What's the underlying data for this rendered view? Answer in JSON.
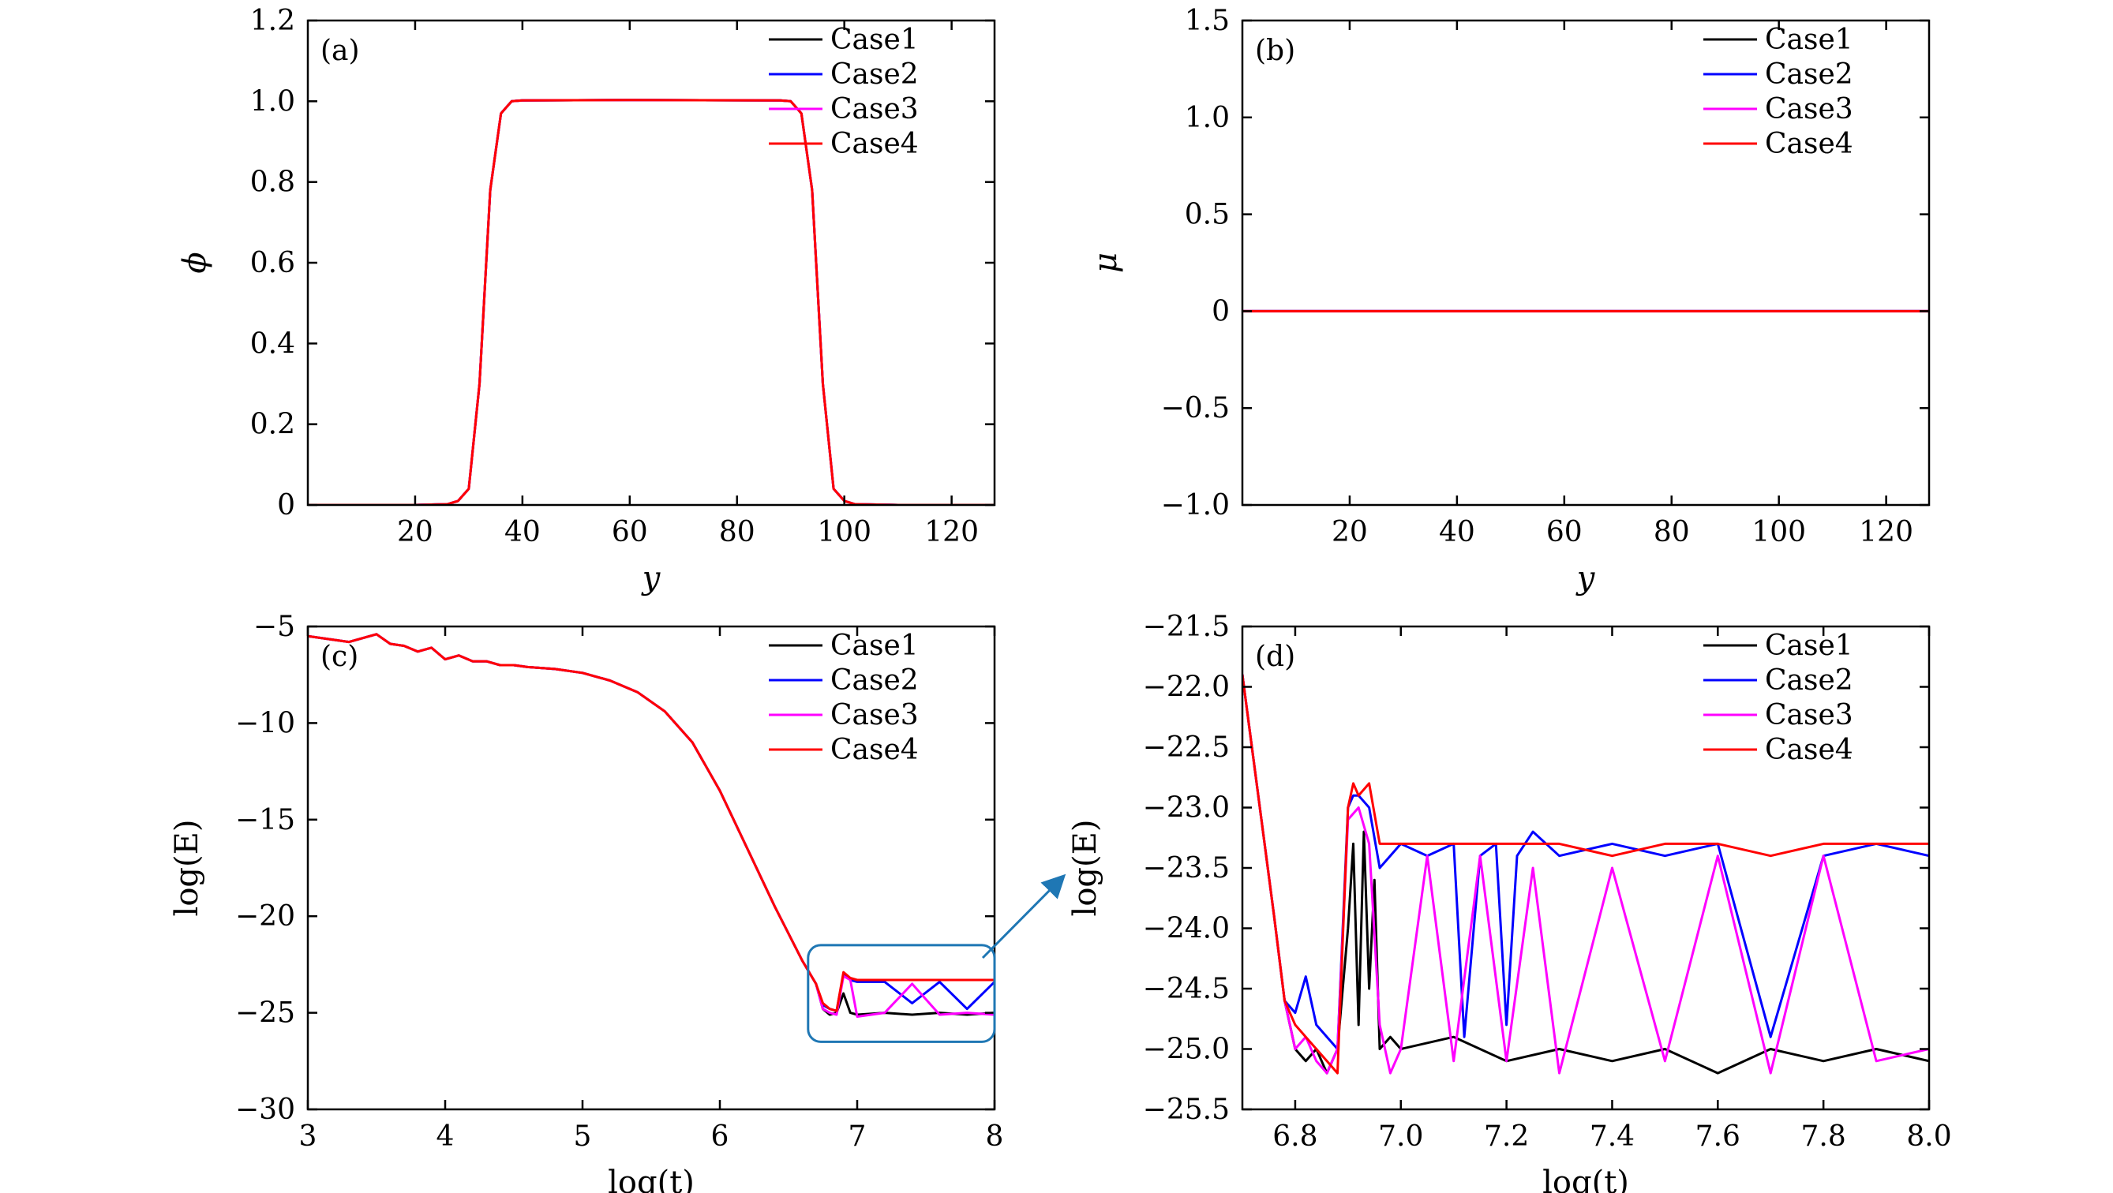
{
  "colors": {
    "Case1": "#000000",
    "Case2": "#0000ff",
    "Case3": "#ff00ff",
    "Case4": "#ff0000",
    "arrow": "#1f77b4",
    "zoom_box": "#1f77b4"
  },
  "chart_data": [
    {
      "id": "a",
      "type": "line",
      "panel_label": "(a)",
      "xlabel": "y",
      "ylabel": "ϕ",
      "xlim": [
        0,
        128
      ],
      "ylim": [
        0,
        1.2
      ],
      "xticks": [
        20,
        40,
        60,
        80,
        100,
        120
      ],
      "xtick_labels": [
        "20",
        "40",
        "60",
        "80",
        "100",
        "120"
      ],
      "yticks": [
        0,
        0.2,
        0.4,
        0.6,
        0.8,
        1.0,
        1.2
      ],
      "ytick_labels": [
        "0",
        "0.2",
        "0.4",
        "0.6",
        "0.8",
        "1.0",
        "1.2"
      ],
      "legend": [
        "Case1",
        "Case2",
        "Case3",
        "Case4"
      ],
      "legend_position": "top-right",
      "series": [
        {
          "name": "Case1",
          "x": [
            0,
            20,
            26,
            28,
            30,
            32,
            34,
            36,
            38,
            40,
            60,
            88,
            90,
            92,
            94,
            96,
            98,
            100,
            102,
            110,
            128
          ],
          "y": [
            0,
            0,
            0.002,
            0.01,
            0.04,
            0.3,
            0.78,
            0.97,
            1.0,
            1.002,
            1.003,
            1.002,
            1.0,
            0.97,
            0.78,
            0.3,
            0.04,
            0.01,
            0.002,
            0,
            0
          ]
        },
        {
          "name": "Case2",
          "x": [
            0,
            20,
            26,
            28,
            30,
            32,
            34,
            36,
            38,
            40,
            60,
            88,
            90,
            92,
            94,
            96,
            98,
            100,
            102,
            110,
            128
          ],
          "y": [
            0,
            0,
            0.002,
            0.01,
            0.04,
            0.3,
            0.78,
            0.97,
            1.0,
            1.002,
            1.003,
            1.002,
            1.0,
            0.97,
            0.78,
            0.3,
            0.04,
            0.01,
            0.002,
            0,
            0
          ]
        },
        {
          "name": "Case3",
          "x": [
            0,
            20,
            26,
            28,
            30,
            32,
            34,
            36,
            38,
            40,
            60,
            88,
            90,
            92,
            94,
            96,
            98,
            100,
            102,
            110,
            128
          ],
          "y": [
            0,
            0,
            0.002,
            0.01,
            0.04,
            0.3,
            0.78,
            0.97,
            1.0,
            1.002,
            1.003,
            1.002,
            1.0,
            0.97,
            0.78,
            0.3,
            0.04,
            0.01,
            0.002,
            0,
            0
          ]
        },
        {
          "name": "Case4",
          "x": [
            0,
            20,
            26,
            28,
            30,
            32,
            34,
            36,
            38,
            40,
            60,
            88,
            90,
            92,
            94,
            96,
            98,
            100,
            102,
            110,
            128
          ],
          "y": [
            0,
            0,
            0.002,
            0.01,
            0.04,
            0.3,
            0.78,
            0.97,
            1.0,
            1.002,
            1.003,
            1.002,
            1.0,
            0.97,
            0.78,
            0.3,
            0.04,
            0.01,
            0.002,
            0,
            0
          ]
        }
      ]
    },
    {
      "id": "b",
      "type": "line",
      "panel_label": "(b)",
      "xlabel": "y",
      "ylabel": "μ",
      "xlim": [
        0,
        128
      ],
      "ylim": [
        -1.0,
        1.5
      ],
      "xticks": [
        20,
        40,
        60,
        80,
        100,
        120
      ],
      "xtick_labels": [
        "20",
        "40",
        "60",
        "80",
        "100",
        "120"
      ],
      "yticks": [
        -1.0,
        -0.5,
        0,
        0.5,
        1.0,
        1.5
      ],
      "ytick_labels": [
        "−1.0",
        "−0.5",
        "0",
        "0.5",
        "1.0",
        "1.5"
      ],
      "legend": [
        "Case1",
        "Case2",
        "Case3",
        "Case4"
      ],
      "legend_position": "top-right",
      "series": [
        {
          "name": "Case1",
          "x": [
            0,
            128
          ],
          "y": [
            0,
            0
          ]
        },
        {
          "name": "Case2",
          "x": [
            0,
            128
          ],
          "y": [
            0,
            0
          ]
        },
        {
          "name": "Case3",
          "x": [
            0,
            128
          ],
          "y": [
            0,
            0
          ]
        },
        {
          "name": "Case4",
          "x": [
            0,
            128
          ],
          "y": [
            0,
            0
          ]
        }
      ]
    },
    {
      "id": "c",
      "type": "line",
      "panel_label": "(c)",
      "xlabel": "log(t)",
      "ylabel": "log(E)",
      "xlim": [
        3,
        8
      ],
      "ylim": [
        -30,
        -5
      ],
      "xticks": [
        3,
        4,
        5,
        6,
        7,
        8
      ],
      "xtick_labels": [
        "3",
        "4",
        "5",
        "6",
        "7",
        "8"
      ],
      "yticks": [
        -30,
        -25,
        -20,
        -15,
        -10,
        -5
      ],
      "ytick_labels": [
        "−30",
        "−25",
        "−20",
        "−15",
        "−10",
        "−5"
      ],
      "legend": [
        "Case1",
        "Case2",
        "Case3",
        "Case4"
      ],
      "legend_position": "top-right",
      "zoom_region": {
        "x": [
          6.7,
          8.0
        ],
        "y": [
          -26.5,
          -21.5
        ]
      },
      "series": [
        {
          "name": "Case1",
          "x": [
            3.0,
            3.3,
            3.5,
            3.6,
            3.7,
            3.8,
            3.9,
            4.0,
            4.1,
            4.2,
            4.3,
            4.4,
            4.5,
            4.6,
            4.8,
            5.0,
            5.2,
            5.4,
            5.6,
            5.8,
            6.0,
            6.2,
            6.4,
            6.6,
            6.7,
            6.75,
            6.8,
            6.85,
            6.9,
            6.95,
            7.0,
            7.2,
            7.4,
            7.6,
            7.8,
            8.0
          ],
          "y": [
            -5.5,
            -5.8,
            -5.4,
            -5.9,
            -6.0,
            -6.3,
            -6.1,
            -6.7,
            -6.5,
            -6.8,
            -6.8,
            -7.0,
            -7.0,
            -7.1,
            -7.2,
            -7.4,
            -7.8,
            -8.4,
            -9.4,
            -11.0,
            -13.5,
            -16.5,
            -19.5,
            -22.3,
            -23.5,
            -24.8,
            -25.1,
            -25.0,
            -24.0,
            -25.0,
            -25.1,
            -25.0,
            -25.1,
            -25.0,
            -25.1,
            -25.0
          ]
        },
        {
          "name": "Case2",
          "x": [
            3.0,
            3.3,
            3.5,
            3.6,
            3.7,
            3.8,
            3.9,
            4.0,
            4.1,
            4.2,
            4.3,
            4.4,
            4.5,
            4.6,
            4.8,
            5.0,
            5.2,
            5.4,
            5.6,
            5.8,
            6.0,
            6.2,
            6.4,
            6.6,
            6.7,
            6.75,
            6.8,
            6.85,
            6.9,
            6.95,
            7.0,
            7.2,
            7.4,
            7.6,
            7.8,
            8.0
          ],
          "y": [
            -5.5,
            -5.8,
            -5.4,
            -5.9,
            -6.0,
            -6.3,
            -6.1,
            -6.7,
            -6.5,
            -6.8,
            -6.8,
            -7.0,
            -7.0,
            -7.1,
            -7.2,
            -7.4,
            -7.8,
            -8.4,
            -9.4,
            -11.0,
            -13.5,
            -16.5,
            -19.5,
            -22.3,
            -23.5,
            -24.6,
            -24.8,
            -24.9,
            -23.0,
            -23.3,
            -23.4,
            -23.4,
            -24.5,
            -23.4,
            -24.8,
            -23.4
          ]
        },
        {
          "name": "Case3",
          "x": [
            3.0,
            3.3,
            3.5,
            3.6,
            3.7,
            3.8,
            3.9,
            4.0,
            4.1,
            4.2,
            4.3,
            4.4,
            4.5,
            4.6,
            4.8,
            5.0,
            5.2,
            5.4,
            5.6,
            5.8,
            6.0,
            6.2,
            6.4,
            6.6,
            6.7,
            6.75,
            6.8,
            6.85,
            6.9,
            6.95,
            7.0,
            7.2,
            7.4,
            7.6,
            7.8,
            8.0
          ],
          "y": [
            -5.5,
            -5.8,
            -5.4,
            -5.9,
            -6.0,
            -6.3,
            -6.1,
            -6.7,
            -6.5,
            -6.8,
            -6.8,
            -7.0,
            -7.0,
            -7.1,
            -7.2,
            -7.4,
            -7.8,
            -8.4,
            -9.4,
            -11.0,
            -13.5,
            -16.5,
            -19.5,
            -22.3,
            -23.5,
            -24.8,
            -25.0,
            -25.1,
            -23.1,
            -23.3,
            -25.2,
            -25.0,
            -23.5,
            -25.1,
            -25.0,
            -25.1
          ]
        },
        {
          "name": "Case4",
          "x": [
            3.0,
            3.3,
            3.5,
            3.6,
            3.7,
            3.8,
            3.9,
            4.0,
            4.1,
            4.2,
            4.3,
            4.4,
            4.5,
            4.6,
            4.8,
            5.0,
            5.2,
            5.4,
            5.6,
            5.8,
            6.0,
            6.2,
            6.4,
            6.6,
            6.7,
            6.75,
            6.8,
            6.85,
            6.9,
            6.95,
            7.0,
            7.2,
            7.4,
            7.6,
            7.8,
            8.0
          ],
          "y": [
            -5.5,
            -5.8,
            -5.4,
            -5.9,
            -6.0,
            -6.3,
            -6.1,
            -6.7,
            -6.5,
            -6.8,
            -6.8,
            -7.0,
            -7.0,
            -7.1,
            -7.2,
            -7.4,
            -7.8,
            -8.4,
            -9.4,
            -11.0,
            -13.5,
            -16.5,
            -19.5,
            -22.3,
            -23.5,
            -24.5,
            -24.8,
            -24.9,
            -22.9,
            -23.2,
            -23.3,
            -23.3,
            -23.3,
            -23.3,
            -23.3,
            -23.3
          ]
        }
      ]
    },
    {
      "id": "d",
      "type": "line",
      "panel_label": "(d)",
      "xlabel": "log(t)",
      "ylabel": "log(E)",
      "xlim": [
        6.7,
        8.0
      ],
      "ylim": [
        -25.5,
        -21.5
      ],
      "xticks": [
        6.8,
        7.0,
        7.2,
        7.4,
        7.6,
        7.8,
        8.0
      ],
      "xtick_labels": [
        "6.8",
        "7.0",
        "7.2",
        "7.4",
        "7.6",
        "7.8",
        "8.0"
      ],
      "yticks": [
        -25.5,
        -25.0,
        -24.5,
        -24.0,
        -23.5,
        -23.0,
        -22.5,
        -22.0,
        -21.5
      ],
      "ytick_labels": [
        "−25.5",
        "−25.0",
        "−24.5",
        "−24.0",
        "−23.5",
        "−23.0",
        "−22.5",
        "−22.0",
        "−21.5"
      ],
      "legend": [
        "Case1",
        "Case2",
        "Case3",
        "Case4"
      ],
      "legend_position": "top-right",
      "series": [
        {
          "name": "Case1",
          "x": [
            6.7,
            6.73,
            6.76,
            6.78,
            6.8,
            6.82,
            6.84,
            6.86,
            6.88,
            6.9,
            6.91,
            6.92,
            6.93,
            6.94,
            6.95,
            6.96,
            6.98,
            7.0,
            7.1,
            7.2,
            7.3,
            7.4,
            7.5,
            7.6,
            7.7,
            7.8,
            7.9,
            8.0
          ],
          "y": [
            -21.9,
            -22.9,
            -23.9,
            -24.6,
            -25.0,
            -25.1,
            -25.0,
            -25.2,
            -25.0,
            -24.0,
            -23.3,
            -24.8,
            -23.2,
            -24.5,
            -23.6,
            -25.0,
            -24.9,
            -25.0,
            -24.9,
            -25.1,
            -25.0,
            -25.1,
            -25.0,
            -25.2,
            -25.0,
            -25.1,
            -25.0,
            -25.1
          ]
        },
        {
          "name": "Case2",
          "x": [
            6.7,
            6.73,
            6.76,
            6.78,
            6.8,
            6.82,
            6.84,
            6.86,
            6.88,
            6.9,
            6.91,
            6.92,
            6.94,
            6.96,
            7.0,
            7.05,
            7.1,
            7.12,
            7.15,
            7.18,
            7.2,
            7.22,
            7.25,
            7.3,
            7.4,
            7.5,
            7.6,
            7.7,
            7.8,
            7.9,
            8.0
          ],
          "y": [
            -21.9,
            -22.9,
            -23.9,
            -24.6,
            -24.7,
            -24.4,
            -24.8,
            -24.9,
            -25.0,
            -23.0,
            -22.9,
            -22.9,
            -23.0,
            -23.5,
            -23.3,
            -23.4,
            -23.3,
            -24.9,
            -23.4,
            -23.3,
            -24.8,
            -23.4,
            -23.2,
            -23.4,
            -23.3,
            -23.4,
            -23.3,
            -24.9,
            -23.4,
            -23.3,
            -23.4
          ]
        },
        {
          "name": "Case3",
          "x": [
            6.7,
            6.73,
            6.76,
            6.78,
            6.8,
            6.82,
            6.84,
            6.86,
            6.88,
            6.9,
            6.92,
            6.94,
            6.96,
            6.98,
            7.0,
            7.05,
            7.1,
            7.15,
            7.2,
            7.25,
            7.3,
            7.4,
            7.5,
            7.6,
            7.7,
            7.8,
            7.9,
            8.0
          ],
          "y": [
            -21.9,
            -22.9,
            -23.9,
            -24.6,
            -25.0,
            -24.9,
            -25.1,
            -25.2,
            -25.0,
            -23.1,
            -23.0,
            -23.3,
            -24.8,
            -25.2,
            -25.0,
            -23.4,
            -25.1,
            -23.4,
            -25.1,
            -23.5,
            -25.2,
            -23.5,
            -25.1,
            -23.4,
            -25.2,
            -23.4,
            -25.1,
            -25.0
          ]
        },
        {
          "name": "Case4",
          "x": [
            6.7,
            6.73,
            6.76,
            6.78,
            6.8,
            6.82,
            6.84,
            6.86,
            6.88,
            6.9,
            6.91,
            6.92,
            6.94,
            6.96,
            7.0,
            7.1,
            7.2,
            7.3,
            7.4,
            7.5,
            7.6,
            7.7,
            7.8,
            7.9,
            8.0
          ],
          "y": [
            -21.9,
            -22.9,
            -23.9,
            -24.6,
            -24.8,
            -24.9,
            -25.0,
            -25.1,
            -25.2,
            -23.0,
            -22.8,
            -22.9,
            -22.8,
            -23.3,
            -23.3,
            -23.3,
            -23.3,
            -23.3,
            -23.4,
            -23.3,
            -23.3,
            -23.4,
            -23.3,
            -23.3,
            -23.3
          ]
        }
      ]
    }
  ]
}
